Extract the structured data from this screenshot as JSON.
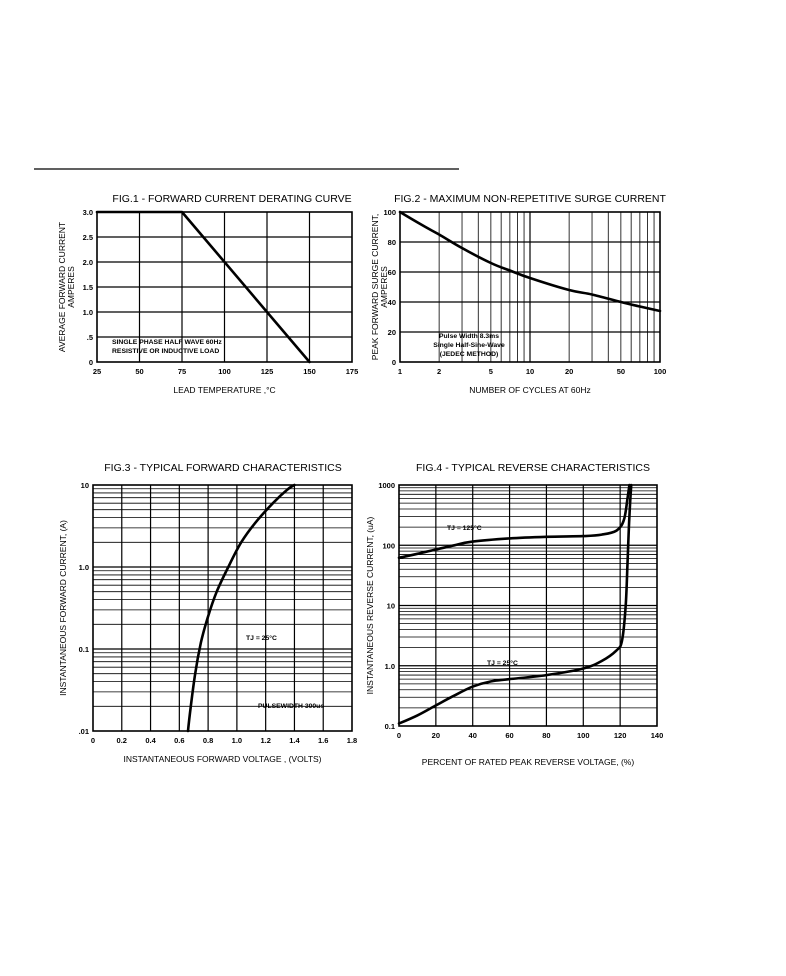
{
  "chart_data": [
    {
      "id": "fig1",
      "type": "line",
      "title": "FIG.1 - FORWARD CURRENT DERATING CURVE",
      "xlabel": "LEAD TEMPERATURE ,°C",
      "ylabel": [
        "AVERAGE FORWARD CURRENT",
        "AMPERES"
      ],
      "xlim": [
        25,
        175
      ],
      "ylim": [
        0,
        3.0
      ],
      "xticks": [
        25,
        50,
        75,
        100,
        125,
        150,
        175
      ],
      "xtick_labels": [
        "25",
        "50",
        "75",
        "100",
        "125",
        "150",
        "175"
      ],
      "yticks": [
        0,
        0.5,
        1.0,
        1.5,
        2.0,
        2.5,
        3.0
      ],
      "ytick_labels": [
        "0",
        ".5",
        "1.0",
        "1.5",
        "2.0",
        "2.5",
        "3.0"
      ],
      "annotations": [
        "SINGLE PHASE HALF WAVE 60Hz",
        "RESISTIVE OR INDUCTIVE LOAD"
      ],
      "series": [
        {
          "x": [
            25,
            75,
            150
          ],
          "y": [
            3.0,
            3.0,
            0
          ]
        }
      ]
    },
    {
      "id": "fig2",
      "type": "line",
      "title": "FIG.2 - MAXIMUM NON-REPETITIVE SURGE CURRENT",
      "xlabel": "NUMBER OF CYCLES AT 60Hz",
      "ylabel": [
        "PEAK FORWARD SURGE CURRENT,",
        "AMPERES"
      ],
      "xscale": "log",
      "xlim": [
        1,
        100
      ],
      "ylim": [
        0,
        100
      ],
      "xticks": [
        1,
        2,
        5,
        10,
        20,
        50,
        100
      ],
      "xtick_labels": [
        "1",
        "2",
        "5",
        "10",
        "20",
        "50",
        "100"
      ],
      "yticks": [
        0,
        20,
        40,
        60,
        80,
        100
      ],
      "ytick_labels": [
        "0",
        "20",
        "40",
        "60",
        "80",
        "100"
      ],
      "annotations": [
        "Pulse Width 8.3ms",
        "Single Half-Sine-Wave",
        "(JEDEC METHOD)"
      ],
      "series": [
        {
          "x": [
            1,
            1.5,
            2,
            3,
            5,
            7,
            10,
            20,
            30,
            50,
            70,
            100
          ],
          "y": [
            100,
            91,
            85,
            76,
            66,
            61,
            56,
            48,
            45,
            40,
            37,
            34
          ]
        }
      ]
    },
    {
      "id": "fig3",
      "type": "line",
      "title": "FIG.3 - TYPICAL FORWARD CHARACTERISTICS",
      "xlabel": "INSTANTANEOUS FORWARD VOLTAGE , (VOLTS)",
      "ylabel": [
        "INSTANTANEOUS  FORWARD CURRENT, (A)"
      ],
      "yscale": "log",
      "xlim": [
        0,
        1.8
      ],
      "ylim": [
        0.01,
        10
      ],
      "xticks": [
        0,
        0.2,
        0.4,
        0.6,
        0.8,
        1.0,
        1.2,
        1.4,
        1.6,
        1.8
      ],
      "xtick_labels": [
        "0",
        "0.2",
        "0.4",
        "0.6",
        "0.8",
        "1.0",
        "1.2",
        "1.4",
        "1.6",
        "1.8"
      ],
      "yticks": [
        0.01,
        0.1,
        1.0,
        10
      ],
      "ytick_labels": [
        ".01",
        "0.1",
        "1.0",
        "10"
      ],
      "annotations": [
        "TJ = 25°C",
        "PULSEWIDTH 300us"
      ],
      "series": [
        {
          "name": "TJ = 25°C",
          "x": [
            0.66,
            0.68,
            0.71,
            0.75,
            0.8,
            0.86,
            0.94,
            1.03,
            1.13,
            1.25,
            1.35,
            1.4
          ],
          "y": [
            0.01,
            0.02,
            0.05,
            0.12,
            0.25,
            0.5,
            1.0,
            2.0,
            3.5,
            6.0,
            8.8,
            10
          ]
        }
      ]
    },
    {
      "id": "fig4",
      "type": "line",
      "title": "FIG.4 - TYPICAL REVERSE CHARACTERISTICS",
      "xlabel": "PERCENT OF RATED PEAK REVERSE VOLTAGE, (%)",
      "ylabel": [
        "INSTANTANEOUS REVERSE CURRENT, (uA)"
      ],
      "yscale": "log",
      "xlim": [
        0,
        140
      ],
      "ylim": [
        0.1,
        1000
      ],
      "xticks": [
        0,
        20,
        40,
        60,
        80,
        100,
        120,
        140
      ],
      "xtick_labels": [
        "0",
        "20",
        "40",
        "60",
        "80",
        "100",
        "120",
        "140"
      ],
      "yticks": [
        0.1,
        1.0,
        10,
        100,
        1000
      ],
      "ytick_labels": [
        "0.1",
        "1.0",
        "10",
        "100",
        "1000"
      ],
      "annotations": [
        "TJ = 125°C",
        "TJ = 25°C"
      ],
      "series": [
        {
          "name": "TJ = 125°C",
          "x": [
            0,
            10,
            20,
            30,
            40,
            60,
            80,
            100,
            110,
            118,
            122,
            124,
            125
          ],
          "y": [
            62,
            72,
            85,
            100,
            115,
            130,
            138,
            142,
            150,
            175,
            260,
            600,
            1000
          ]
        },
        {
          "name": "TJ = 25°C",
          "x": [
            0,
            10,
            20,
            30,
            40,
            50,
            60,
            80,
            100,
            110,
            118,
            121,
            123,
            124,
            125,
            126
          ],
          "y": [
            0.11,
            0.15,
            0.22,
            0.32,
            0.45,
            0.55,
            0.6,
            0.7,
            0.9,
            1.2,
            1.8,
            2.6,
            10,
            50,
            300,
            1000
          ]
        }
      ]
    }
  ]
}
